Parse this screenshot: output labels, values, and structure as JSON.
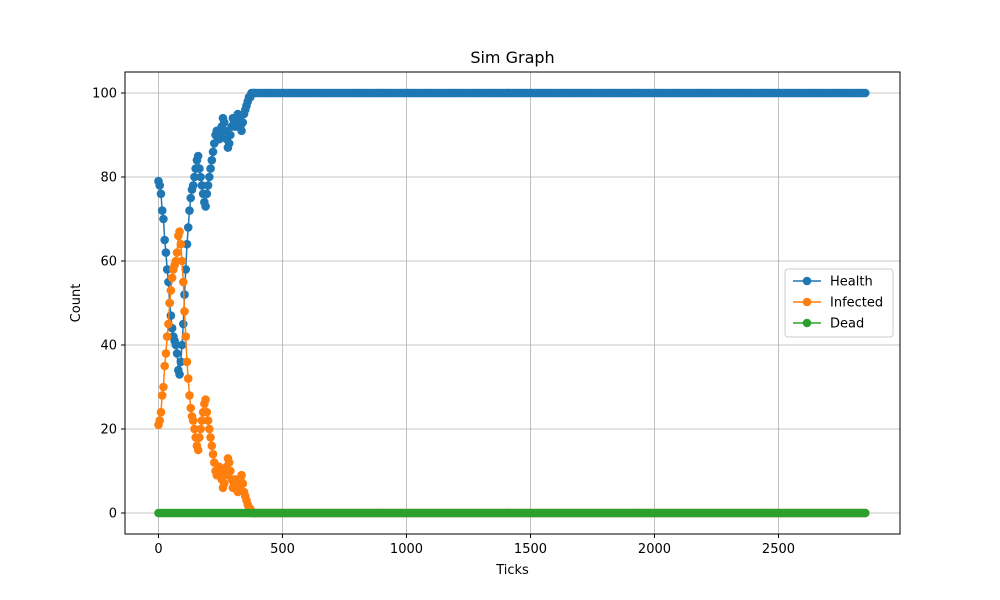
{
  "chart_data": {
    "type": "line",
    "title": "Sim Graph",
    "xlabel": "Ticks",
    "ylabel": "Count",
    "xlim": [
      -135,
      2990
    ],
    "ylim": [
      -5,
      105
    ],
    "xticks": [
      0,
      500,
      1000,
      1500,
      2000,
      2500
    ],
    "yticks": [
      0,
      20,
      40,
      60,
      80,
      100
    ],
    "grid": true,
    "legend_position": "center-right",
    "marker": "circle",
    "series": [
      {
        "name": "Health",
        "color": "#1f77b4",
        "x": [
          0,
          5,
          10,
          15,
          20,
          25,
          30,
          35,
          40,
          45,
          50,
          55,
          60,
          65,
          70,
          75,
          80,
          85,
          90,
          95,
          100,
          105,
          110,
          115,
          120,
          125,
          130,
          135,
          140,
          145,
          150,
          155,
          160,
          165,
          170,
          175,
          180,
          185,
          190,
          195,
          200,
          205,
          210,
          215,
          220,
          225,
          230,
          235,
          240,
          245,
          250,
          255,
          260,
          265,
          270,
          275,
          280,
          285,
          290,
          295,
          300,
          305,
          310,
          315,
          320,
          325,
          330,
          335,
          340,
          345,
          350,
          355,
          360,
          365,
          370,
          375,
          380,
          390,
          400,
          420,
          450,
          500,
          600,
          800,
          1000,
          1500,
          2000,
          2500,
          2850
        ],
        "y": [
          79,
          78,
          76,
          72,
          70,
          65,
          62,
          58,
          55,
          50,
          47,
          44,
          42,
          41,
          40,
          38,
          34,
          33,
          36,
          40,
          45,
          52,
          58,
          64,
          68,
          72,
          75,
          77,
          78,
          80,
          82,
          84,
          85,
          82,
          80,
          78,
          76,
          74,
          73,
          76,
          78,
          80,
          82,
          84,
          86,
          88,
          90,
          91,
          90,
          89,
          90,
          92,
          94,
          93,
          91,
          89,
          87,
          88,
          90,
          92,
          94,
          93,
          92,
          93,
          95,
          94,
          92,
          91,
          93,
          95,
          96,
          97,
          98,
          99,
          99,
          100,
          100,
          100,
          100,
          100,
          100,
          100,
          100,
          100,
          100,
          100,
          100,
          100,
          100
        ]
      },
      {
        "name": "Infected",
        "color": "#ff7f0e",
        "x": [
          0,
          5,
          10,
          15,
          20,
          25,
          30,
          35,
          40,
          45,
          50,
          55,
          60,
          65,
          70,
          75,
          80,
          85,
          90,
          95,
          100,
          105,
          110,
          115,
          120,
          125,
          130,
          135,
          140,
          145,
          150,
          155,
          160,
          165,
          170,
          175,
          180,
          185,
          190,
          195,
          200,
          205,
          210,
          215,
          220,
          225,
          230,
          235,
          240,
          245,
          250,
          255,
          260,
          265,
          270,
          275,
          280,
          285,
          290,
          295,
          300,
          305,
          310,
          315,
          320,
          325,
          330,
          335,
          340,
          345,
          350,
          355,
          360,
          365,
          370,
          375,
          380,
          390,
          400,
          420,
          450,
          500,
          600,
          800,
          1000,
          1500,
          2000,
          2500,
          2850
        ],
        "y": [
          21,
          22,
          24,
          28,
          30,
          35,
          38,
          42,
          45,
          50,
          53,
          56,
          58,
          59,
          60,
          62,
          66,
          67,
          64,
          60,
          55,
          48,
          42,
          36,
          32,
          28,
          25,
          23,
          22,
          20,
          18,
          16,
          15,
          18,
          20,
          22,
          24,
          26,
          27,
          24,
          22,
          20,
          18,
          16,
          14,
          12,
          10,
          9,
          10,
          11,
          10,
          8,
          6,
          7,
          9,
          11,
          13,
          12,
          10,
          8,
          6,
          7,
          8,
          7,
          5,
          6,
          8,
          9,
          7,
          5,
          4,
          3,
          2,
          1,
          1,
          0,
          0,
          0,
          0,
          0,
          0,
          0,
          0,
          0,
          0,
          0,
          0,
          0,
          0
        ]
      },
      {
        "name": "Dead",
        "color": "#2ca02c",
        "x": [
          0,
          500,
          1000,
          1500,
          2000,
          2500,
          2850
        ],
        "y": [
          0,
          0,
          0,
          0,
          0,
          0,
          0
        ]
      }
    ]
  }
}
